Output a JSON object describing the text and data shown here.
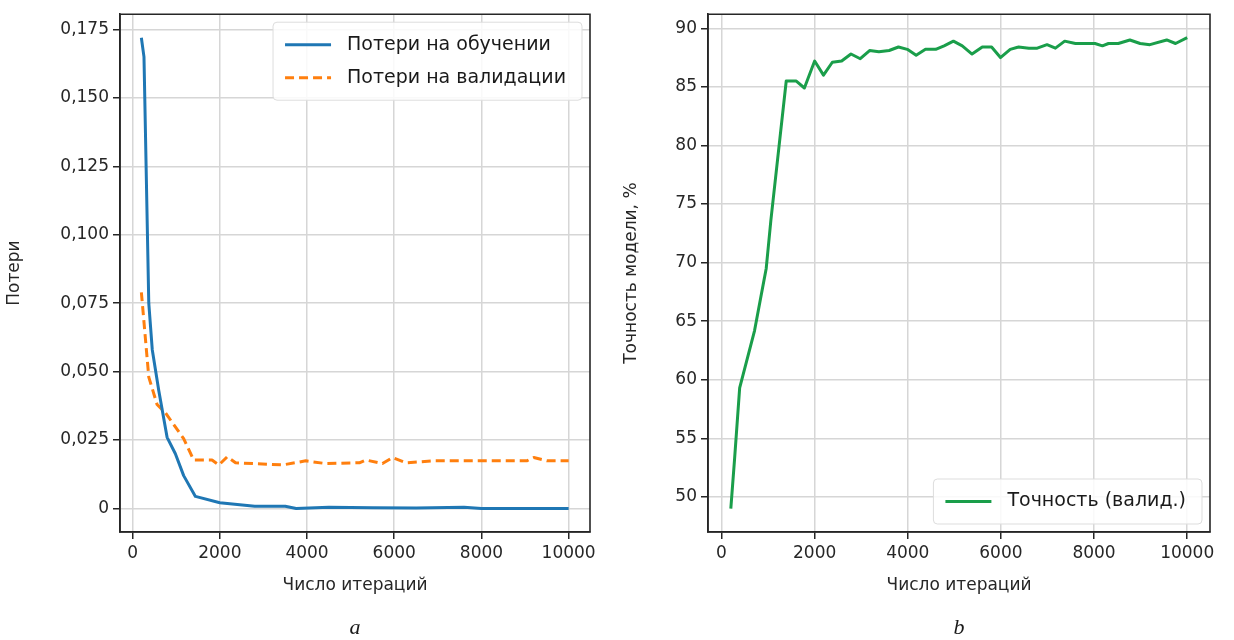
{
  "chart_data": [
    {
      "type": "line",
      "xlabel": "Число итераций",
      "ylabel": "Потери",
      "annotations": [
        "a"
      ],
      "xlim": [
        -290,
        10490
      ],
      "xticks": [
        0,
        2000,
        4000,
        6000,
        8000,
        10000
      ],
      "ylim": [
        -0.0086,
        0.1806
      ],
      "yticks": [
        0,
        {
          "value": 0.025,
          "label": "0,025"
        },
        {
          "value": 0.05,
          "label": "0,050"
        },
        {
          "value": 0.075,
          "label": "0,075"
        },
        {
          "value": 0.1,
          "label": "0,100"
        },
        {
          "value": 0.125,
          "label": "0,125"
        },
        {
          "value": 0.15,
          "label": "0,150"
        },
        {
          "value": 0.175,
          "label": "0,175"
        }
      ],
      "grid": true,
      "legend": "top right",
      "series": [
        {
          "name": "Потери на обучении",
          "color": "#1f77b4",
          "line_style": "solid",
          "x": [
            200,
            260,
            370,
            450,
            600,
            790,
            980,
            1170,
            1440,
            2000,
            2800,
            3500,
            3750,
            4500,
            5500,
            6500,
            7600,
            8000,
            10000
          ],
          "values": [
            0.172,
            0.165,
            0.075,
            0.058,
            0.043,
            0.026,
            0.02,
            0.012,
            0.0044,
            0.0021,
            0.0008,
            0.0008,
            0.0,
            0.0004,
            0.0003,
            0.0002,
            0.0004,
            0.0,
            0.0
          ]
        },
        {
          "name": "Потери на валидации",
          "color": "#ff7f0e",
          "line_style": "dashed",
          "x": [
            200,
            370,
            560,
            750,
            1170,
            1400,
            1820,
            1980,
            2170,
            2360,
            3440,
            3970,
            4430,
            5200,
            5350,
            5730,
            5960,
            6270,
            6890,
            9040,
            9200,
            9500,
            10000
          ],
          "values": [
            0.079,
            0.048,
            0.038,
            0.035,
            0.0255,
            0.0177,
            0.0177,
            0.0159,
            0.0189,
            0.0167,
            0.0159,
            0.0174,
            0.0164,
            0.0167,
            0.0177,
            0.0164,
            0.0186,
            0.0167,
            0.0174,
            0.0174,
            0.0186,
            0.0174,
            0.0174
          ]
        }
      ]
    },
    {
      "type": "line",
      "xlabel": "Число итераций",
      "ylabel": "Точность модели, %",
      "annotations": [
        "b"
      ],
      "xlim": [
        -290,
        10490
      ],
      "xticks": [
        0,
        2000,
        4000,
        6000,
        8000,
        10000
      ],
      "ylim": [
        47,
        91.2
      ],
      "yticks": [
        50,
        55,
        60,
        65,
        70,
        75,
        80,
        85,
        90
      ],
      "grid": true,
      "legend": "bottom right",
      "series": [
        {
          "name": "Точность (валид.)",
          "color": "#1a9e4a",
          "line_style": "solid",
          "x": [
            200,
            280,
            390,
            710,
            960,
            1060,
            1390,
            1600,
            1780,
            2000,
            2190,
            2380,
            2580,
            2780,
            2980,
            3180,
            3380,
            3600,
            3800,
            3990,
            4180,
            4380,
            4600,
            4780,
            4980,
            5170,
            5380,
            5600,
            5800,
            5990,
            6200,
            6380,
            6600,
            6780,
            6990,
            7170,
            7370,
            7600,
            8020,
            8180,
            8310,
            8520,
            8770,
            8990,
            9200,
            9560,
            9750,
            10000
          ],
          "values": [
            49.0,
            53.2,
            59.3,
            64.2,
            69.5,
            73.6,
            85.5,
            85.5,
            84.9,
            87.2,
            86.0,
            87.1,
            87.2,
            87.8,
            87.4,
            88.1,
            88.0,
            88.1,
            88.4,
            88.2,
            87.7,
            88.2,
            88.2,
            88.5,
            88.9,
            88.5,
            87.8,
            88.4,
            88.4,
            87.5,
            88.2,
            88.4,
            88.3,
            88.3,
            88.6,
            88.3,
            88.9,
            88.7,
            88.7,
            88.5,
            88.7,
            88.7,
            89.0,
            88.7,
            88.6,
            89.0,
            88.7,
            89.2
          ]
        }
      ]
    }
  ]
}
